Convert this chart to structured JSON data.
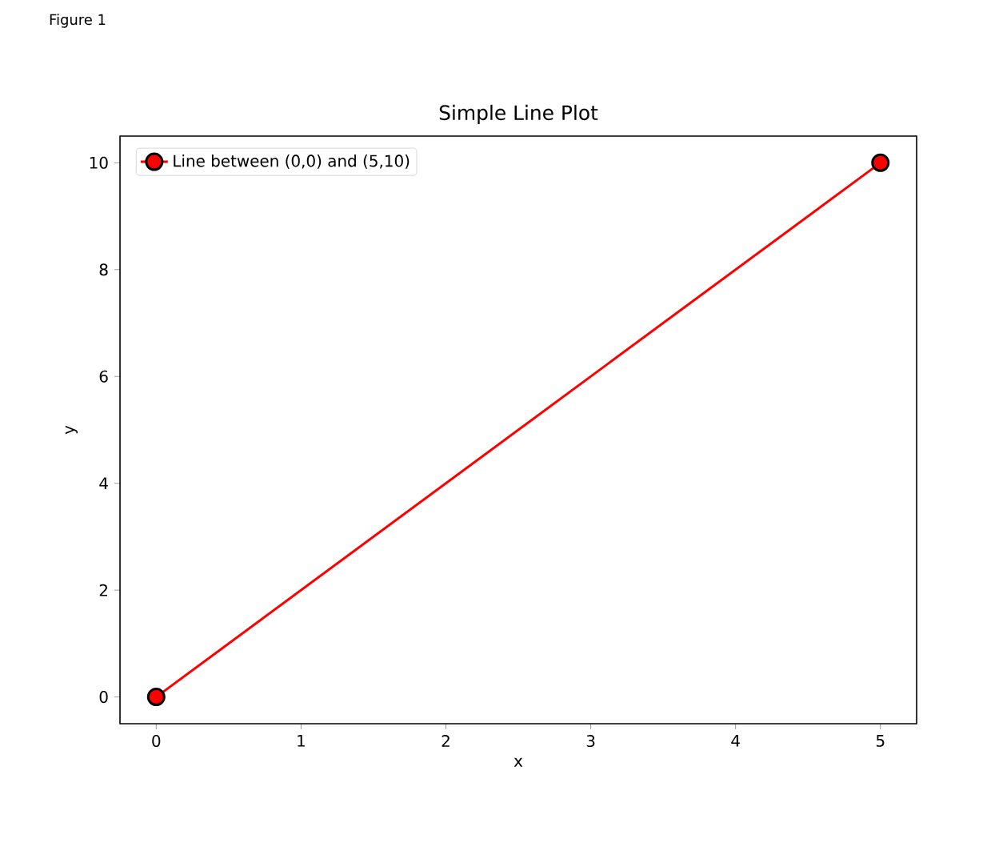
{
  "chart_data": {
    "type": "line",
    "title": "Simple Line Plot",
    "xlabel": "x",
    "ylabel": "y",
    "x": [
      0,
      5
    ],
    "series": [
      {
        "name": "Line between (0,0) and (5,10)",
        "color": "#ff0000",
        "values": [
          0,
          10
        ]
      }
    ],
    "xlim": [
      -0.25,
      5.25
    ],
    "ylim": [
      -0.5,
      10.5
    ],
    "xticks": [
      0,
      1,
      2,
      3,
      4,
      5
    ],
    "yticks": [
      0,
      2,
      4,
      6,
      8,
      10
    ],
    "marker": "circle",
    "line_style": "solid",
    "legend": "top left",
    "annotations": [
      "Figure 1"
    ]
  }
}
